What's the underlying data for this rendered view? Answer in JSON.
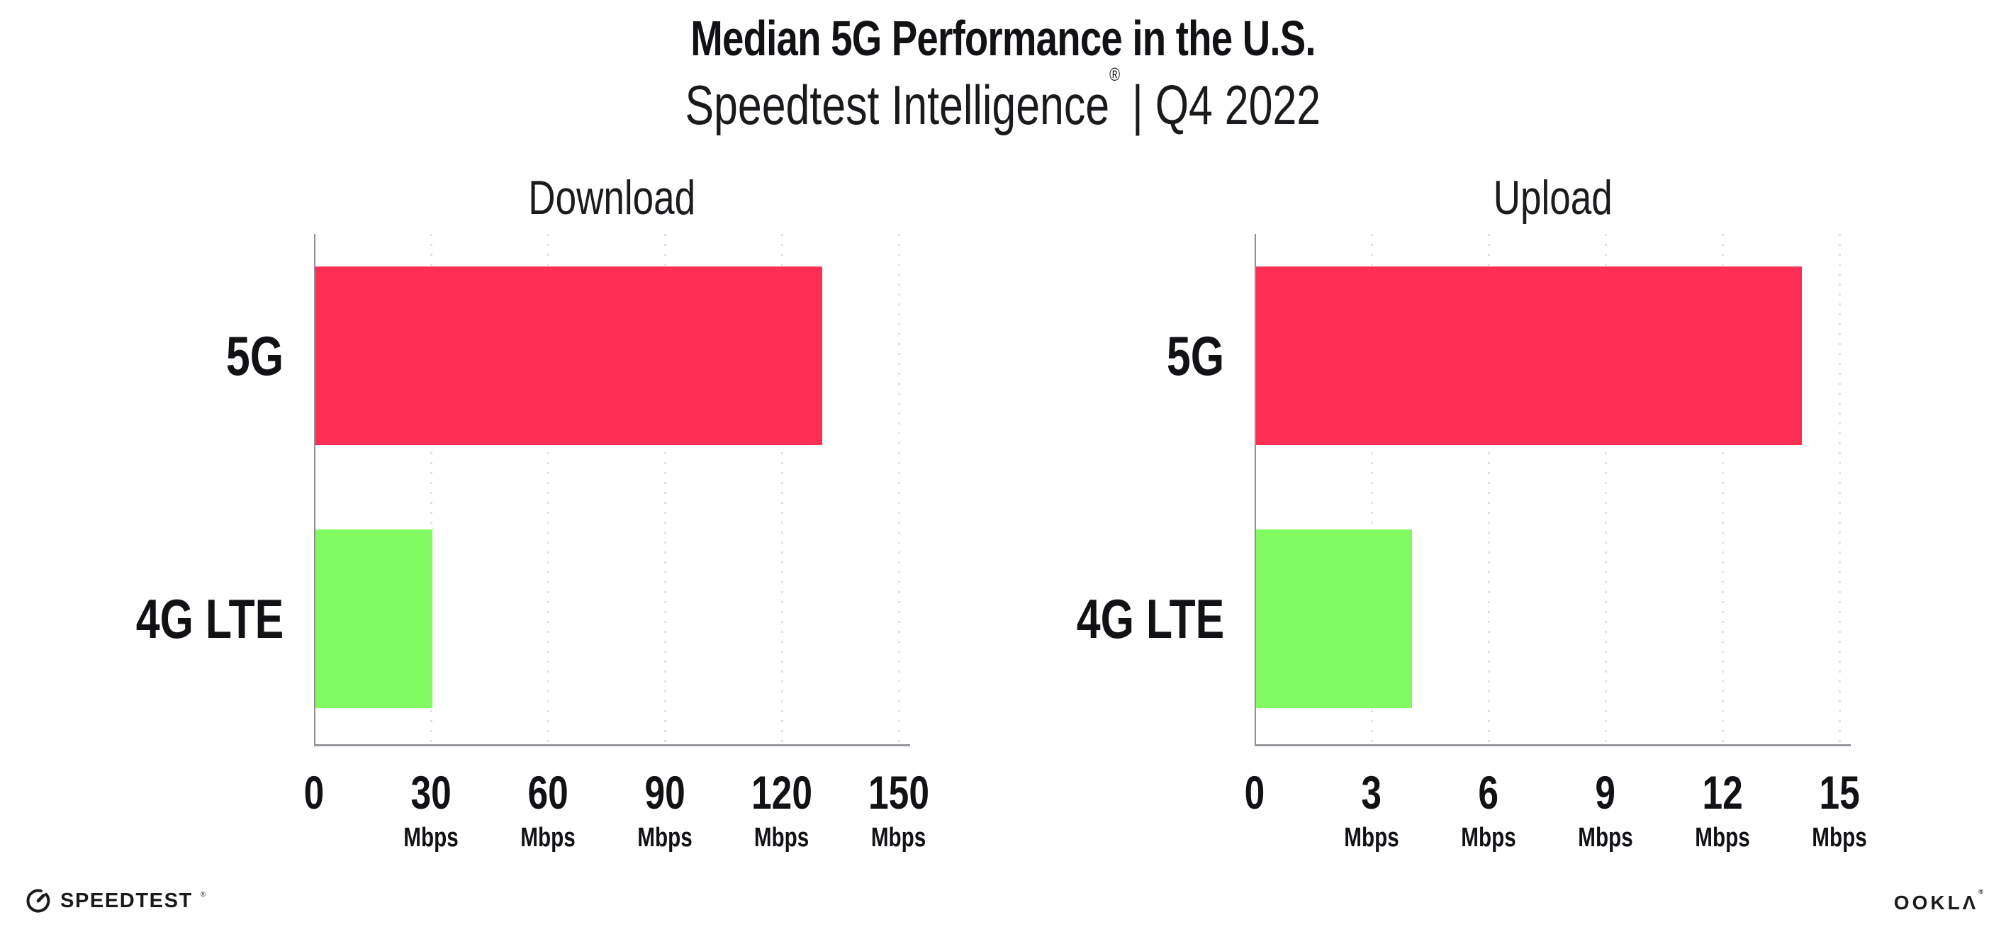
{
  "header": {
    "title": "Median 5G Performance in the U.S.",
    "subtitle_product": "Speedtest Intelligence",
    "subtitle_reg": "®",
    "subtitle_rest": " | Q4 2022"
  },
  "chart_data": [
    {
      "type": "bar",
      "orientation": "horizontal",
      "title": "Download",
      "categories": [
        "5G",
        "4G LTE"
      ],
      "values": [
        130,
        30
      ],
      "unit": "Mbps",
      "xlim": [
        0,
        150
      ],
      "xticks": [
        0,
        30,
        60,
        90,
        120,
        150
      ],
      "tick_unit_label": "Mbps",
      "bar_colors": [
        "#FF2E55",
        "#81FB61"
      ],
      "grid": "dotted vertical gridlines at each tick except 0",
      "legend": "none"
    },
    {
      "type": "bar",
      "orientation": "horizontal",
      "title": "Upload",
      "categories": [
        "5G",
        "4G LTE"
      ],
      "values": [
        14,
        4
      ],
      "unit": "Mbps",
      "xlim": [
        0,
        15
      ],
      "xticks": [
        0,
        3,
        6,
        9,
        12,
        15
      ],
      "tick_unit_label": "Mbps",
      "bar_colors": [
        "#FF2E55",
        "#81FB61"
      ],
      "grid": "dotted vertical gridlines at each tick except 0",
      "legend": "none"
    }
  ],
  "colors": {
    "bar_5g": "#FF2E55",
    "bar_4g_lte": "#81FB61",
    "gridline": "#E2E2EA",
    "axis_y": "#8F8F97",
    "axis_x": "#97979F",
    "text": "#121216",
    "background": "#FFFFFF"
  },
  "footer": {
    "speedtest_label": "SPEEDTEST",
    "speedtest_mark": "®",
    "ookla_label": "OOKLΛ",
    "ookla_mark": "®"
  }
}
